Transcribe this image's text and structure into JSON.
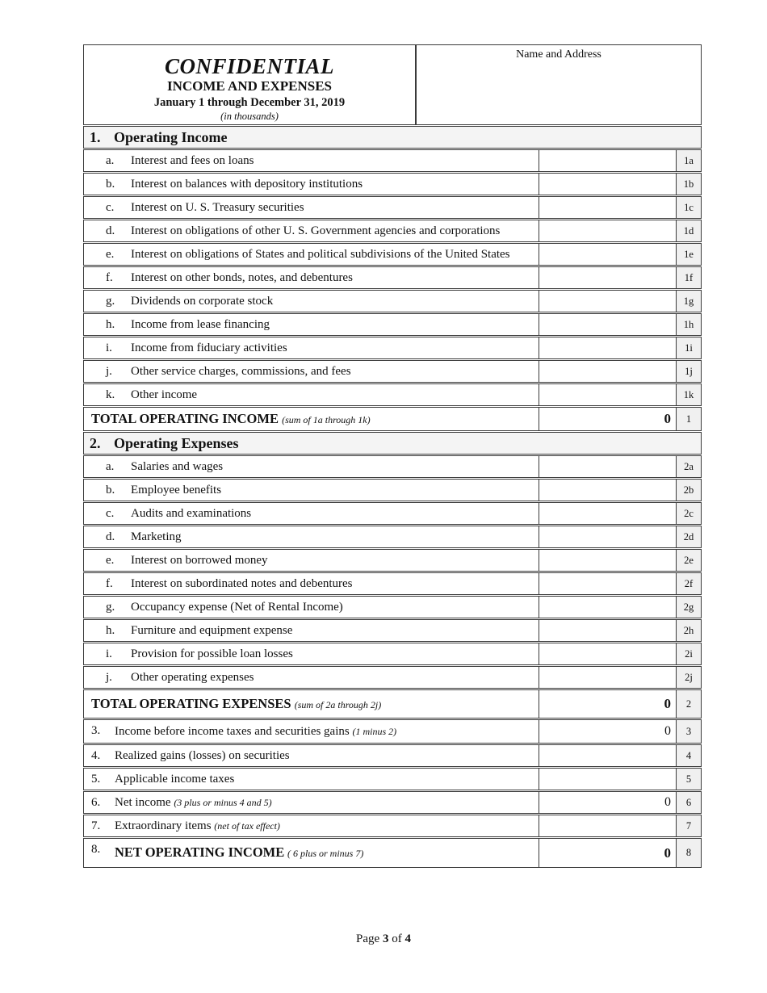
{
  "header": {
    "title": "CONFIDENTIAL",
    "subtitle": "INCOME AND EXPENSES",
    "period": "January 1 through December 31, 2019",
    "units_note": "(in thousands)",
    "name_address_label": "Name and Address"
  },
  "sections": [
    {
      "number": "1.",
      "title": "Operating Income",
      "rows": [
        {
          "letter": "a.",
          "label": "Interest and fees on loans",
          "value": "",
          "line": "1a"
        },
        {
          "letter": "b.",
          "label": "Interest on balances with depository institutions",
          "value": "",
          "line": "1b"
        },
        {
          "letter": "c.",
          "label": "Interest on U. S. Treasury securities",
          "value": "",
          "line": "1c"
        },
        {
          "letter": "d.",
          "label": "Interest on obligations of other U. S. Government agencies and corporations",
          "value": "",
          "line": "1d"
        },
        {
          "letter": "e.",
          "label": "Interest on obligations of States and political subdivisions of the United States",
          "value": "",
          "line": "1e"
        },
        {
          "letter": "f.",
          "label": "Interest on other bonds, notes, and debentures",
          "value": "",
          "line": "1f"
        },
        {
          "letter": "g.",
          "label": "Dividends on corporate stock",
          "value": "",
          "line": "1g"
        },
        {
          "letter": "h.",
          "label": "Income from lease financing",
          "value": "",
          "line": "1h"
        },
        {
          "letter": "i.",
          "label": "Income from fiduciary activities",
          "value": "",
          "line": "1i"
        },
        {
          "letter": "j.",
          "label": "Other service charges, commissions, and fees",
          "value": "",
          "line": "1j"
        },
        {
          "letter": "k.",
          "label": "Other income",
          "value": "",
          "line": "1k"
        }
      ],
      "total": {
        "label": "TOTAL OPERATING INCOME",
        "note": "(sum of 1a through 1k)",
        "value": "0",
        "line": "1"
      }
    },
    {
      "number": "2.",
      "title": "Operating Expenses",
      "rows": [
        {
          "letter": "a.",
          "label": "Salaries and wages",
          "value": "",
          "line": "2a"
        },
        {
          "letter": "b.",
          "label": "Employee benefits",
          "value": "",
          "line": "2b"
        },
        {
          "letter": "c.",
          "label": "Audits and examinations",
          "value": "",
          "line": "2c"
        },
        {
          "letter": "d.",
          "label": "Marketing",
          "value": "",
          "line": "2d"
        },
        {
          "letter": "e.",
          "label": "Interest on borrowed money",
          "value": "",
          "line": "2e"
        },
        {
          "letter": "f.",
          "label": "Interest on subordinated notes and debentures",
          "value": "",
          "line": "2f"
        },
        {
          "letter": "g.",
          "label": "Occupancy expense (Net of Rental Income)",
          "value": "",
          "line": "2g"
        },
        {
          "letter": "h.",
          "label": "Furniture and equipment expense",
          "value": "",
          "line": "2h"
        },
        {
          "letter": "i.",
          "label": "Provision for possible loan losses",
          "value": "",
          "line": "2i"
        },
        {
          "letter": "j.",
          "label": "Other operating expenses",
          "value": "",
          "line": "2j"
        }
      ],
      "total": {
        "label": "TOTAL OPERATING EXPENSES",
        "note": "(sum of 2a through 2j)",
        "value": "0",
        "line": "2"
      }
    }
  ],
  "summary_rows": [
    {
      "number": "3.",
      "label": "Income before income taxes and securities gains",
      "note": "(1 minus 2)",
      "value": "0",
      "line": "3",
      "bold": false
    },
    {
      "number": "4.",
      "label": "Realized gains (losses) on securities",
      "note": "",
      "value": "",
      "line": "4",
      "bold": false
    },
    {
      "number": "5.",
      "label": "Applicable income taxes",
      "note": "",
      "value": "",
      "line": "5",
      "bold": false
    },
    {
      "number": "6.",
      "label": "Net income",
      "note": "(3 plus or minus 4 and 5)",
      "value": "0",
      "line": "6",
      "bold": false
    },
    {
      "number": "7.",
      "label": "Extraordinary items",
      "note": "(net of tax effect)",
      "value": "",
      "line": "7",
      "bold": false
    },
    {
      "number": "8.",
      "label": "NET OPERATING INCOME",
      "note": "( 6 plus or minus 7)",
      "value": "0",
      "line": "8",
      "bold": true
    }
  ],
  "footer": {
    "prefix": "Page",
    "page_number": "3",
    "of_label": "of",
    "total_pages": "4"
  },
  "colors": {
    "border": "#3a3a3a",
    "line_cell_bg": "#f0f0f0",
    "section_bg": "#f4f4f4"
  }
}
